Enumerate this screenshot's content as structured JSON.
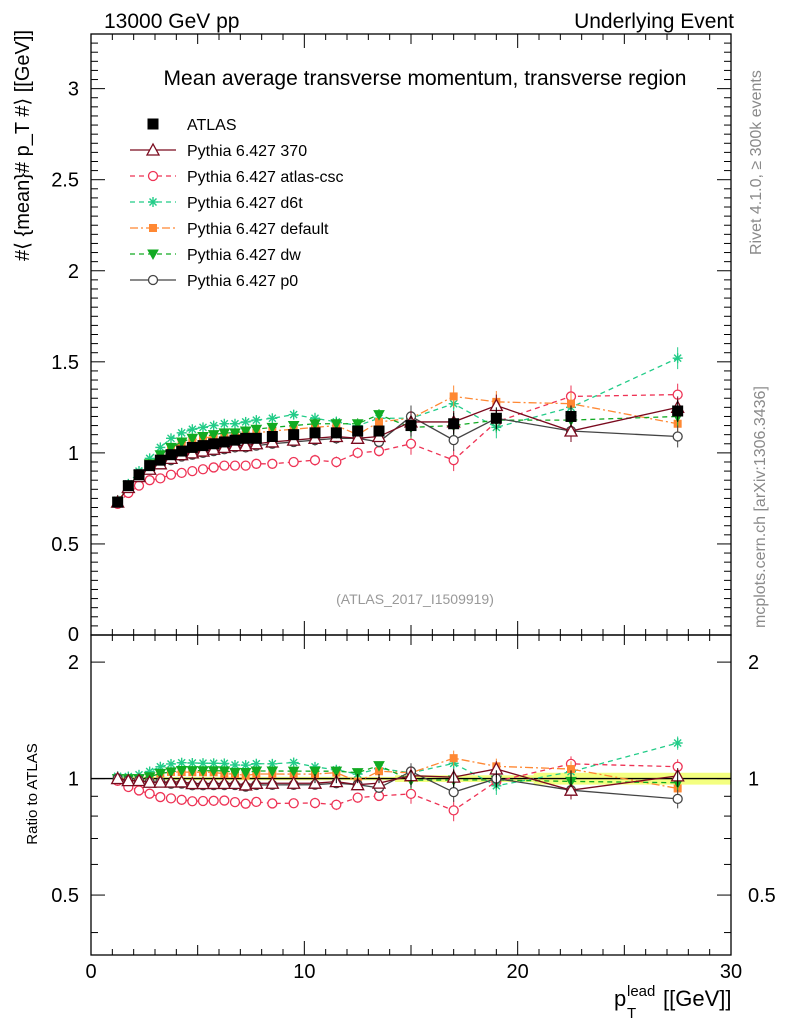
{
  "header": {
    "left": "13000 GeV pp",
    "right": "Underlying Event"
  },
  "side_labels": {
    "rivet": "Rivet 4.1.0, ≥ 300k events",
    "mcplots": "mcplots.cern.ch [arXiv:1306.3436]"
  },
  "colors": {
    "data": "#000000",
    "p370": "#7a0a1e",
    "atlascsc": "#ee3355",
    "d6t": "#22cc88",
    "default": "#ff8833",
    "dw": "#11aa22",
    "p0": "#444444",
    "band_outer": "#f4ff80",
    "band_inner": "#ccee66"
  },
  "chart_data": {
    "type": "scatter",
    "title": "Mean average transverse momentum, transverse region",
    "analysis_id": "(ATLAS_2017_I1509919)",
    "xlabel_base": "p",
    "xlabel_sub": "T",
    "xlabel_sup": "lead",
    "xlabel_unit": "[[GeV]]",
    "ylabel": "#⟨ {mean}# p_T #⟩ [[GeV]]",
    "ratio_ylabel": "Ratio to ATLAS",
    "xlim": [
      0,
      30
    ],
    "ylim": [
      0,
      3.3
    ],
    "ratio_ylim": [
      0.35,
      2.35
    ],
    "xticks": [
      0,
      10,
      20,
      30
    ],
    "yticks": [
      0.5,
      1,
      1.5,
      2,
      2.5,
      3
    ],
    "ytick_labels": [
      "0.5",
      "1",
      "1.5",
      "2",
      "2.5",
      "3"
    ],
    "ratio_ticks": [
      0.5,
      1,
      2
    ],
    "ratio_tick_labels": [
      "0.5",
      "1",
      "2"
    ],
    "x": [
      1.25,
      1.75,
      2.25,
      2.75,
      3.25,
      3.75,
      4.25,
      4.75,
      5.25,
      5.75,
      6.25,
      6.75,
      7.25,
      7.75,
      8.5,
      9.5,
      10.5,
      11.5,
      12.5,
      13.5,
      15,
      17,
      19,
      22.5,
      27.5
    ],
    "series": [
      {
        "key": "atlas",
        "name": "ATLAS",
        "style": "data",
        "values": [
          0.73,
          0.82,
          0.88,
          0.93,
          0.96,
          0.99,
          1.01,
          1.03,
          1.04,
          1.05,
          1.06,
          1.07,
          1.08,
          1.08,
          1.09,
          1.1,
          1.11,
          1.11,
          1.12,
          1.12,
          1.15,
          1.16,
          1.19,
          1.2,
          1.23
        ]
      },
      {
        "key": "p370",
        "name": "Pythia 6.427 370",
        "style": "solid",
        "marker": "triangle",
        "values": [
          0.73,
          0.81,
          0.87,
          0.91,
          0.94,
          0.97,
          0.99,
          1.0,
          1.01,
          1.02,
          1.03,
          1.04,
          1.04,
          1.05,
          1.06,
          1.07,
          1.08,
          1.09,
          1.08,
          1.09,
          1.17,
          1.17,
          1.26,
          1.12,
          1.25
        ]
      },
      {
        "key": "atlascsc",
        "name": "Pythia 6.427 atlas-csc",
        "style": "dashed",
        "marker": "circle-open",
        "values": [
          0.72,
          0.78,
          0.82,
          0.85,
          0.86,
          0.88,
          0.89,
          0.9,
          0.91,
          0.92,
          0.93,
          0.93,
          0.93,
          0.94,
          0.94,
          0.95,
          0.96,
          0.95,
          1.0,
          1.01,
          1.05,
          0.96,
          1.17,
          1.31,
          1.32
        ]
      },
      {
        "key": "d6t",
        "name": "Pythia 6.427 d6t",
        "style": "dashed",
        "marker": "star",
        "values": [
          0.74,
          0.83,
          0.9,
          0.97,
          1.03,
          1.08,
          1.11,
          1.13,
          1.14,
          1.15,
          1.16,
          1.16,
          1.17,
          1.18,
          1.19,
          1.21,
          1.19,
          1.17,
          1.15,
          1.19,
          1.19,
          1.27,
          1.14,
          1.25,
          1.52
        ]
      },
      {
        "key": "default",
        "name": "Pythia 6.427 default",
        "style": "dashdot",
        "marker": "square",
        "values": [
          0.73,
          0.82,
          0.88,
          0.94,
          0.99,
          1.03,
          1.05,
          1.07,
          1.08,
          1.09,
          1.09,
          1.1,
          1.1,
          1.11,
          1.12,
          1.13,
          1.14,
          1.15,
          1.1,
          1.17,
          1.19,
          1.31,
          1.28,
          1.27,
          1.16
        ]
      },
      {
        "key": "dw",
        "name": "Pythia 6.427 dw",
        "style": "dashed",
        "marker": "triangle-down",
        "values": [
          0.73,
          0.82,
          0.88,
          0.94,
          0.99,
          1.03,
          1.06,
          1.08,
          1.09,
          1.1,
          1.11,
          1.11,
          1.12,
          1.13,
          1.14,
          1.15,
          1.16,
          1.16,
          1.16,
          1.21,
          1.14,
          1.15,
          1.18,
          1.18,
          1.2
        ]
      },
      {
        "key": "p0",
        "name": "Pythia 6.427 p0",
        "style": "solid",
        "marker": "circle-open",
        "values": [
          0.73,
          0.81,
          0.87,
          0.91,
          0.94,
          0.96,
          0.98,
          0.99,
          1.0,
          1.01,
          1.02,
          1.03,
          1.03,
          1.04,
          1.05,
          1.06,
          1.07,
          1.08,
          1.08,
          1.06,
          1.2,
          1.07,
          1.19,
          1.12,
          1.09
        ]
      }
    ],
    "legend_position": "top-left"
  }
}
